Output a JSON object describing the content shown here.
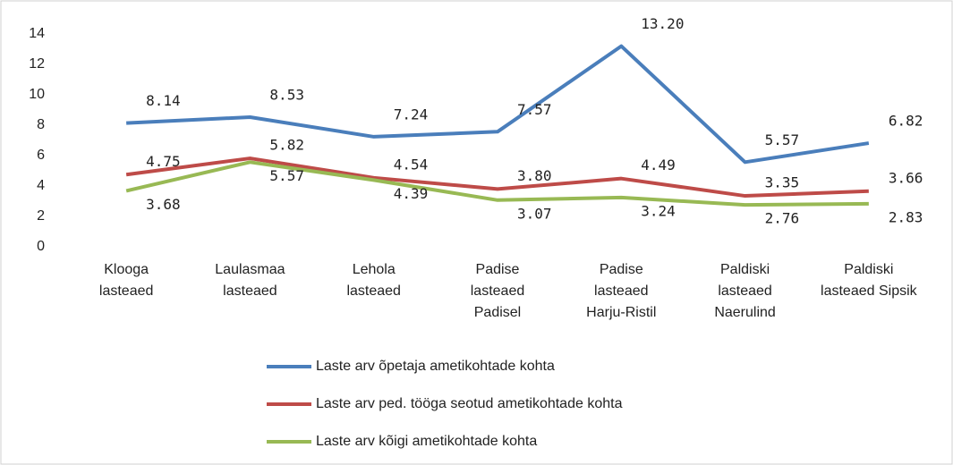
{
  "chart_data": {
    "type": "line",
    "categories": [
      [
        "Klooga",
        "lasteaed"
      ],
      [
        "Laulasmaa",
        "lasteaed"
      ],
      [
        "Lehola",
        "lasteaed"
      ],
      [
        "Padise",
        "lasteaed",
        "Padisel"
      ],
      [
        "Padise",
        "lasteaed",
        "Harju-Ristil"
      ],
      [
        "Paldiski",
        "lasteaed",
        "Naerulind"
      ],
      [
        "Paldiski",
        "lasteaed Sipsik"
      ]
    ],
    "series": [
      {
        "name": "Laste arv õpetaja ametikohtade kohta",
        "color": "#4a7ebb",
        "values": [
          8.14,
          8.53,
          7.24,
          7.57,
          13.2,
          5.57,
          6.82
        ],
        "value_labels": [
          "8.14",
          "8.53",
          "7.24",
          "7.57",
          "13.20",
          "5.57",
          "6.82"
        ]
      },
      {
        "name": "Laste arv ped. tööga seotud ametikohtade kohta",
        "color": "#be4b48",
        "values": [
          4.75,
          5.82,
          4.54,
          3.8,
          4.49,
          3.35,
          3.66
        ],
        "value_labels": [
          "4.75",
          "5.82",
          "4.54",
          "3.80",
          "4.49",
          "3.35",
          "3.66"
        ]
      },
      {
        "name": "Laste arv kõigi ametikohtade kohta",
        "color": "#98b954",
        "values": [
          3.68,
          5.57,
          4.39,
          3.07,
          3.24,
          2.76,
          2.83
        ],
        "value_labels": [
          "3.68",
          "5.57",
          "4.39",
          "3.07",
          "3.24",
          "2.76",
          "2.83"
        ]
      }
    ],
    "ylim": [
      0,
      14
    ],
    "yticks": [
      0,
      2,
      4,
      6,
      8,
      10,
      12,
      14
    ],
    "grid": false,
    "legend": "bottom"
  }
}
